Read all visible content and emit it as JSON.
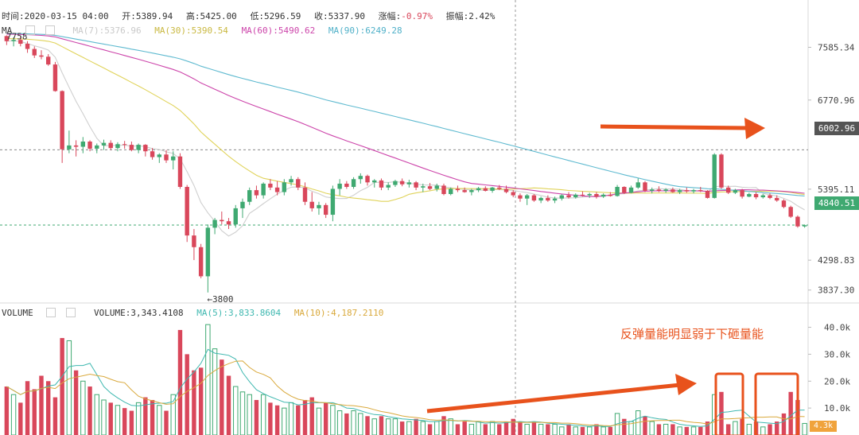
{
  "header": {
    "time": "时间:2020-03-15 04:00",
    "open": "开:5389.94",
    "high": "高:5425.00",
    "low": "低:5296.59",
    "close": "收:5337.90",
    "change_label": "涨幅:",
    "change_value": "-0.97%",
    "amplitude": "振幅:2.42%"
  },
  "ma_legend": {
    "title": "MA",
    "items": [
      {
        "text": "MA(7):5376.96",
        "color": "#c9c9c9"
      },
      {
        "text": "MA(30):5390.54",
        "color": "#d4c64a"
      },
      {
        "text": "MA(60):5490.62",
        "color": "#cc44aa"
      },
      {
        "text": "MA(90):6249.28",
        "color": "#5fbad0"
      }
    ]
  },
  "volume_legend": {
    "title": "VOLUME",
    "items": [
      {
        "text": "VOLUME:3,343.4108",
        "color": "#333333"
      },
      {
        "text": "MA(5):3,833.8604",
        "color": "#3fb8b0"
      },
      {
        "text": "MA(10):4,187.2110",
        "color": "#d9a93c"
      }
    ]
  },
  "price_axis": {
    "ticks": [
      "7585.34",
      "6770.96",
      "5395.11",
      "4298.83",
      "3837.30"
    ],
    "markers": [
      {
        "value": "6002.96",
        "color": "#555555"
      },
      {
        "value": "4840.51",
        "color": "#3fa971"
      }
    ]
  },
  "volume_axis": {
    "ticks": [
      "40.0k",
      "30.0k",
      "20.0k",
      "10.0k"
    ],
    "current": "4.3k"
  },
  "annotations": {
    "high_label": "7758",
    "low_label": "←3800",
    "note": "反弹量能明显弱于下砸量能",
    "note_color": "#e8521c"
  },
  "colors": {
    "up": "#3fa971",
    "down": "#d9475b",
    "arrow": "#e8521c"
  },
  "chart_data": {
    "type": "candlestick",
    "panels": [
      "price",
      "volume"
    ],
    "price_ylim": [
      3650,
      7800
    ],
    "volume_ylim": [
      0,
      44000
    ],
    "candles": [
      [
        7759,
        7770,
        7620,
        7680,
        18000
      ],
      [
        7680,
        7740,
        7600,
        7700,
        15000
      ],
      [
        7700,
        7760,
        7600,
        7640,
        12000
      ],
      [
        7640,
        7680,
        7500,
        7560,
        20000
      ],
      [
        7560,
        7600,
        7420,
        7460,
        17000
      ],
      [
        7460,
        7540,
        7400,
        7440,
        22000
      ],
      [
        7440,
        7480,
        7300,
        7320,
        20000
      ],
      [
        7320,
        7360,
        6900,
        6910,
        14000
      ],
      [
        6910,
        6920,
        5800,
        6010,
        36000
      ],
      [
        6010,
        6300,
        5950,
        6070,
        35000
      ],
      [
        6070,
        6150,
        5900,
        6050,
        24000
      ],
      [
        6050,
        6200,
        5950,
        6130,
        20000
      ],
      [
        6130,
        6150,
        5980,
        6020,
        18000
      ],
      [
        6020,
        6100,
        5950,
        6070,
        15000
      ],
      [
        6070,
        6160,
        6000,
        6110,
        13000
      ],
      [
        6110,
        6150,
        6000,
        6030,
        12000
      ],
      [
        6030,
        6120,
        5980,
        6090,
        11000
      ],
      [
        6090,
        6140,
        6020,
        6080,
        10000
      ],
      [
        6080,
        6130,
        5980,
        6000,
        9000
      ],
      [
        6000,
        6100,
        5950,
        6080,
        12000
      ],
      [
        6080,
        6090,
        5900,
        5980,
        14000
      ],
      [
        5980,
        6030,
        5850,
        5890,
        13000
      ],
      [
        5890,
        5950,
        5800,
        5930,
        11000
      ],
      [
        5930,
        6000,
        5800,
        5840,
        9000
      ],
      [
        5840,
        5980,
        5700,
        5900,
        15000
      ],
      [
        5900,
        5950,
        5400,
        5430,
        39000
      ],
      [
        5430,
        5460,
        4580,
        4680,
        30000
      ],
      [
        4680,
        4780,
        4300,
        4500,
        24000
      ],
      [
        4500,
        4550,
        4020,
        4050,
        25000
      ],
      [
        4050,
        4850,
        3800,
        4800,
        41000
      ],
      [
        4800,
        4950,
        4700,
        4920,
        32000
      ],
      [
        4920,
        5050,
        4850,
        4900,
        28000
      ],
      [
        4900,
        4950,
        4780,
        4850,
        22000
      ],
      [
        4850,
        5150,
        4800,
        5100,
        18000
      ],
      [
        5100,
        5250,
        4950,
        5200,
        16000
      ],
      [
        5200,
        5420,
        5150,
        5380,
        15000
      ],
      [
        5380,
        5450,
        5250,
        5300,
        13000
      ],
      [
        5300,
        5500,
        5250,
        5480,
        15000
      ],
      [
        5480,
        5550,
        5380,
        5420,
        12000
      ],
      [
        5420,
        5520,
        5300,
        5350,
        11000
      ],
      [
        5350,
        5550,
        5300,
        5500,
        10000
      ],
      [
        5500,
        5600,
        5450,
        5550,
        12000
      ],
      [
        5550,
        5580,
        5380,
        5420,
        11000
      ],
      [
        5420,
        5500,
        5150,
        5200,
        13000
      ],
      [
        5200,
        5350,
        5050,
        5100,
        14000
      ],
      [
        5100,
        5200,
        5000,
        5150,
        10000
      ],
      [
        5150,
        5180,
        4950,
        5000,
        12000
      ],
      [
        5000,
        5450,
        4900,
        5400,
        11000
      ],
      [
        5400,
        5550,
        5300,
        5480,
        9000
      ],
      [
        5480,
        5520,
        5400,
        5430,
        8000
      ],
      [
        5430,
        5580,
        5400,
        5550,
        9000
      ],
      [
        5550,
        5640,
        5480,
        5600,
        8000
      ],
      [
        5600,
        5620,
        5450,
        5500,
        7000
      ],
      [
        5500,
        5550,
        5420,
        5530,
        6000
      ],
      [
        5530,
        5560,
        5380,
        5420,
        7000
      ],
      [
        5420,
        5500,
        5380,
        5460,
        6000
      ],
      [
        5460,
        5540,
        5430,
        5520,
        6000
      ],
      [
        5520,
        5560,
        5440,
        5470,
        5000
      ],
      [
        5470,
        5540,
        5420,
        5500,
        5000
      ],
      [
        5500,
        5520,
        5380,
        5420,
        6000
      ],
      [
        5420,
        5480,
        5350,
        5440,
        5000
      ],
      [
        5440,
        5490,
        5380,
        5400,
        4000
      ],
      [
        5400,
        5480,
        5360,
        5450,
        5000
      ],
      [
        5450,
        5480,
        5300,
        5320,
        7000
      ],
      [
        5320,
        5420,
        5300,
        5400,
        6000
      ],
      [
        5400,
        5450,
        5350,
        5380,
        4000
      ],
      [
        5380,
        5420,
        5340,
        5350,
        5000
      ],
      [
        5350,
        5400,
        5300,
        5380,
        4000
      ],
      [
        5380,
        5430,
        5350,
        5410,
        5000
      ],
      [
        5410,
        5440,
        5360,
        5370,
        4000
      ],
      [
        5370,
        5430,
        5340,
        5420,
        5000
      ],
      [
        5420,
        5460,
        5380,
        5400,
        4000
      ],
      [
        5400,
        5450,
        5330,
        5350,
        5000
      ],
      [
        5350,
        5380,
        5270,
        5300,
        6000
      ],
      [
        5300,
        5330,
        5200,
        5250,
        5000
      ],
      [
        5250,
        5320,
        5150,
        5300,
        4000
      ],
      [
        5300,
        5320,
        5200,
        5220,
        5000
      ],
      [
        5220,
        5280,
        5180,
        5260,
        4000
      ],
      [
        5260,
        5300,
        5200,
        5220,
        4000
      ],
      [
        5220,
        5280,
        5180,
        5250,
        4000
      ],
      [
        5250,
        5320,
        5220,
        5300,
        3000
      ],
      [
        5300,
        5350,
        5250,
        5270,
        4000
      ],
      [
        5270,
        5330,
        5250,
        5310,
        3000
      ],
      [
        5310,
        5360,
        5280,
        5300,
        3000
      ],
      [
        5300,
        5340,
        5260,
        5320,
        3000
      ],
      [
        5320,
        5350,
        5250,
        5280,
        4000
      ],
      [
        5280,
        5330,
        5260,
        5310,
        3000
      ],
      [
        5310,
        5350,
        5280,
        5290,
        3000
      ],
      [
        5290,
        5460,
        5280,
        5430,
        8000
      ],
      [
        5430,
        5440,
        5320,
        5340,
        6000
      ],
      [
        5340,
        5450,
        5330,
        5420,
        5000
      ],
      [
        5420,
        5560,
        5400,
        5500,
        9000
      ],
      [
        5500,
        5520,
        5350,
        5370,
        7000
      ],
      [
        5370,
        5420,
        5330,
        5390,
        5000
      ],
      [
        5390,
        5440,
        5350,
        5370,
        4000
      ],
      [
        5370,
        5410,
        5340,
        5390,
        4000
      ],
      [
        5390,
        5420,
        5340,
        5350,
        4000
      ],
      [
        5350,
        5400,
        5320,
        5380,
        3000
      ],
      [
        5380,
        5420,
        5340,
        5360,
        3000
      ],
      [
        5360,
        5400,
        5330,
        5380,
        3000
      ],
      [
        5380,
        5430,
        5350,
        5370,
        3000
      ],
      [
        5370,
        5380,
        5250,
        5260,
        5000
      ],
      [
        5260,
        5950,
        5250,
        5930,
        15000
      ],
      [
        5930,
        5950,
        5400,
        5420,
        16000
      ],
      [
        5420,
        5450,
        5320,
        5340,
        4000
      ],
      [
        5340,
        5400,
        5320,
        5380,
        5000
      ],
      [
        5380,
        5400,
        5250,
        5280,
        6000
      ],
      [
        5280,
        5340,
        5270,
        5320,
        4000
      ],
      [
        5320,
        5350,
        5240,
        5270,
        5000
      ],
      [
        5270,
        5320,
        5250,
        5300,
        3000
      ],
      [
        5300,
        5330,
        5240,
        5260,
        4000
      ],
      [
        5260,
        5300,
        5200,
        5220,
        5000
      ],
      [
        5220,
        5240,
        5100,
        5120,
        8000
      ],
      [
        5120,
        5140,
        4950,
        4970,
        16000
      ],
      [
        4970,
        4990,
        4800,
        4820,
        13000
      ],
      [
        4820,
        4850,
        4800,
        4838,
        4300
      ]
    ],
    "ma_series": [
      "MA(7)",
      "MA(30)",
      "MA(60)",
      "MA(90)"
    ],
    "volume_ma_series": [
      "MA(5)",
      "MA(10)"
    ]
  }
}
